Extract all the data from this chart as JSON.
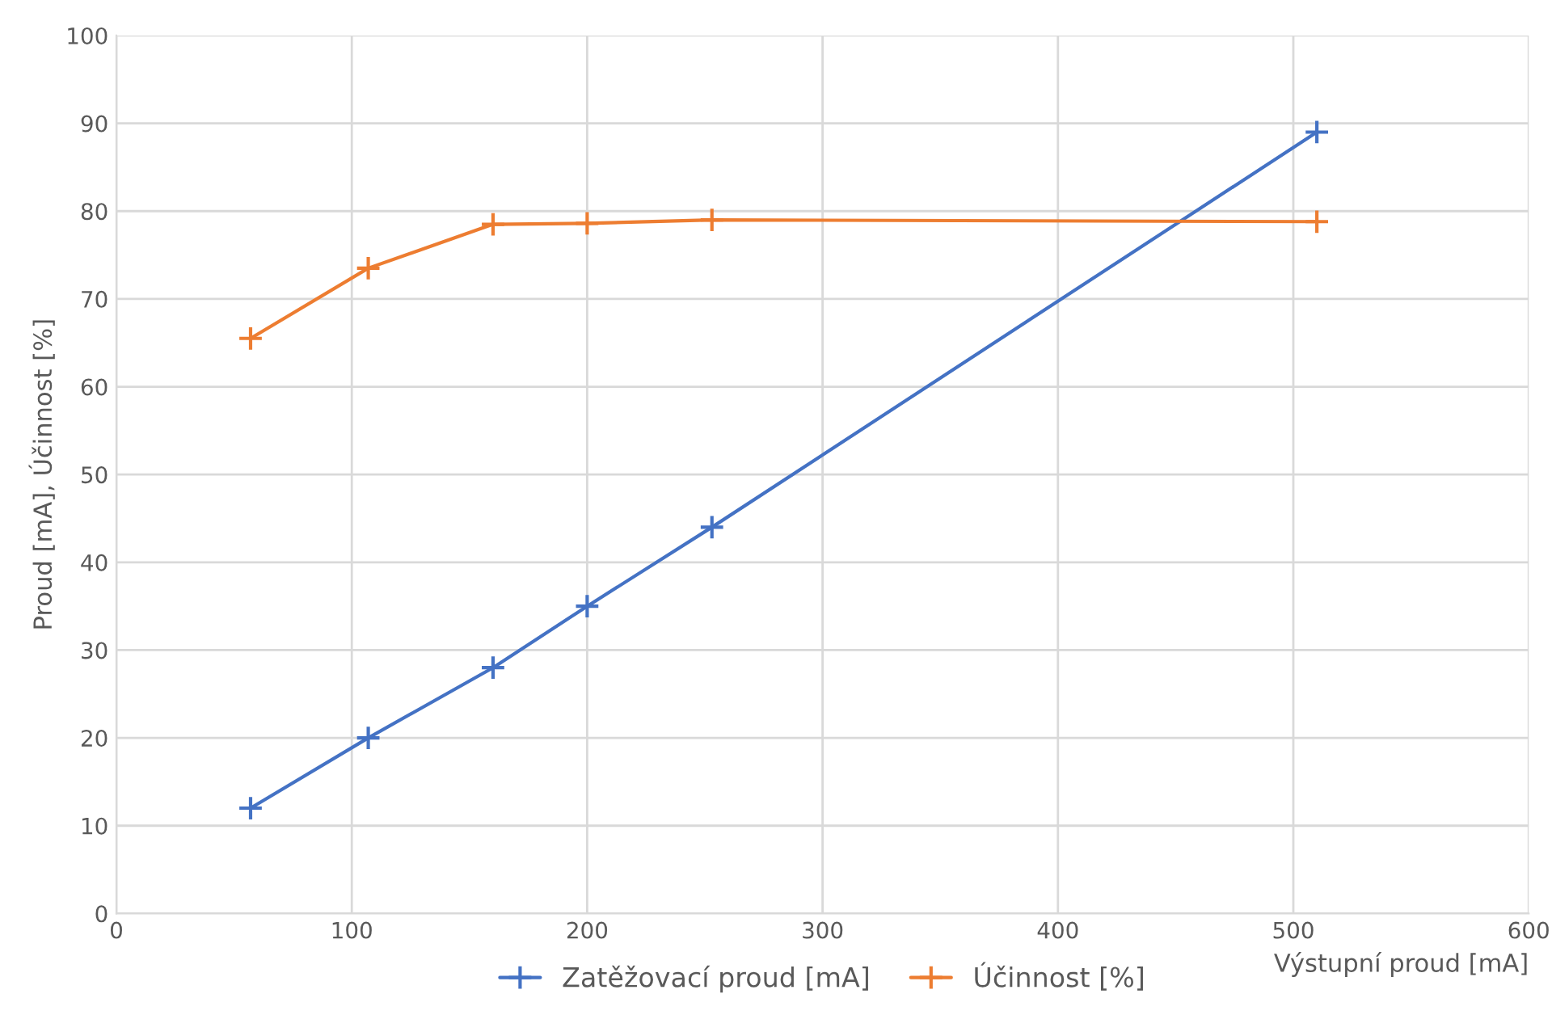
{
  "chart_data": {
    "type": "line",
    "xlabel": "Výstupní proud [mA]",
    "ylabel": "Proud [mA], Účinnost [%]",
    "x": [
      57,
      107,
      160,
      200,
      253,
      510
    ],
    "series": [
      {
        "name": "Zatěžovací proud [mA]",
        "color": "#4472c4",
        "values": [
          12,
          20,
          28,
          35,
          44,
          89
        ]
      },
      {
        "name": "Účinnost [%]",
        "color": "#ed7d31",
        "values": [
          65.5,
          73.5,
          78.5,
          78.6,
          79,
          78.8
        ]
      }
    ],
    "xlim": [
      0,
      600
    ],
    "xticks": [
      0,
      100,
      200,
      300,
      400,
      500,
      600
    ],
    "ylim": [
      0,
      100
    ],
    "yticks": [
      0,
      10,
      20,
      30,
      40,
      50,
      60,
      70,
      80,
      90,
      100
    ],
    "grid": true,
    "legend": "bottom",
    "marker": "cross",
    "line_style": "solid"
  }
}
